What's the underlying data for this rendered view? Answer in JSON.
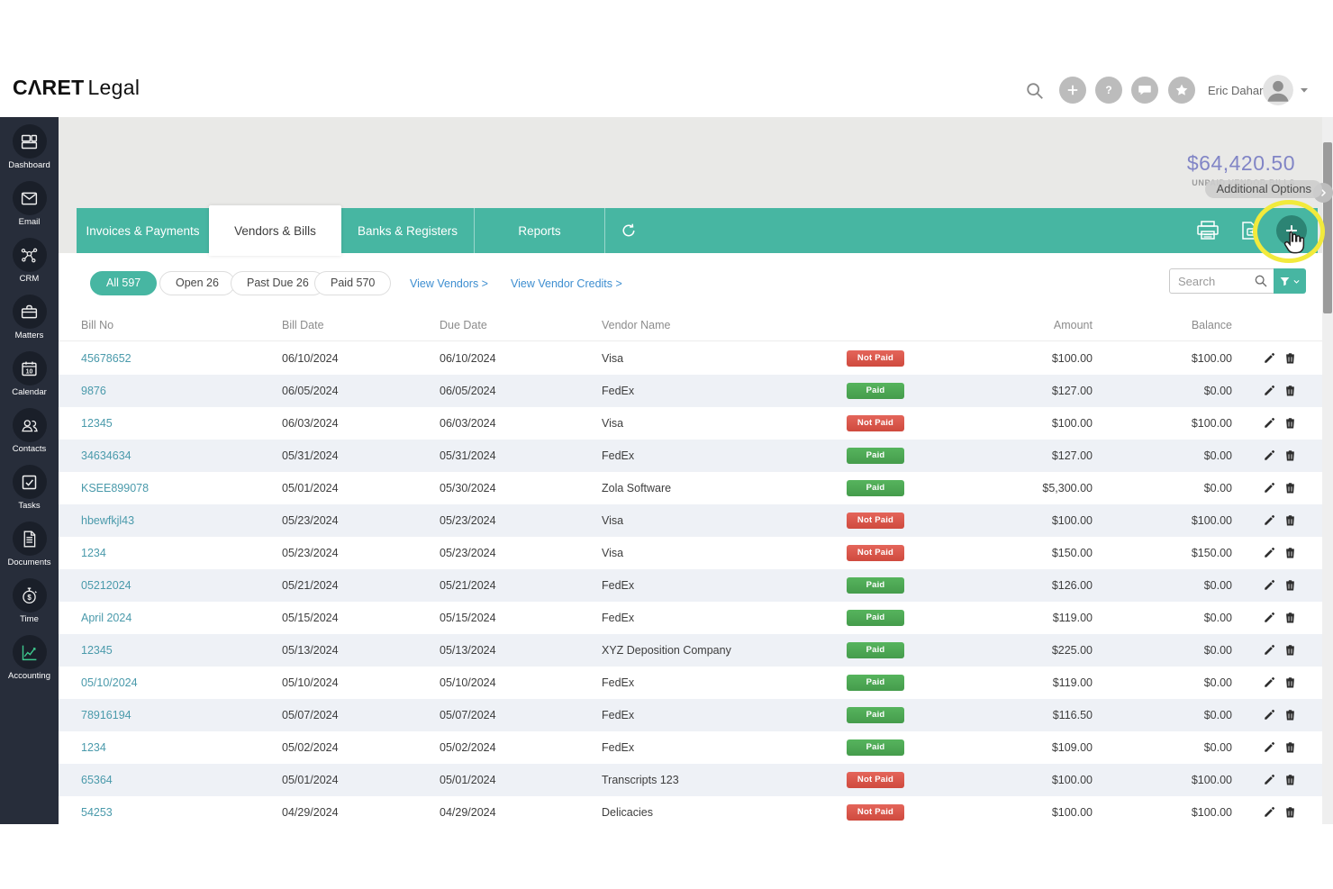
{
  "brand": {
    "bold": "CΛRET",
    "light": "Legal"
  },
  "header": {
    "user_name": "Eric Dahan"
  },
  "summary": {
    "amount": "$64,420.50",
    "label": "UNPAID VENDOR BILLS"
  },
  "tooltip": {
    "text": "Additional Options"
  },
  "tabs": [
    {
      "label": "Invoices & Payments",
      "active": false
    },
    {
      "label": "Vendors & Bills",
      "active": true
    },
    {
      "label": "Banks & Registers",
      "active": false
    },
    {
      "label": "Reports",
      "active": false
    }
  ],
  "filters": {
    "pills": [
      {
        "label": "All 597",
        "active": true
      },
      {
        "label": "Open 26",
        "active": false
      },
      {
        "label": "Past Due 26",
        "active": false
      },
      {
        "label": "Paid 570",
        "active": false
      }
    ],
    "links": [
      {
        "label": "View Vendors >"
      },
      {
        "label": "View Vendor Credits >"
      }
    ]
  },
  "search": {
    "placeholder": "Search"
  },
  "table": {
    "headers": {
      "bill_no": "Bill No",
      "bill_date": "Bill Date",
      "due_date": "Due Date",
      "vendor": "Vendor Name",
      "amount": "Amount",
      "balance": "Balance"
    },
    "rows": [
      {
        "bill_no": "45678652",
        "bill_date": "06/10/2024",
        "due_date": "06/10/2024",
        "vendor": "Visa",
        "status": "Not Paid",
        "amount": "$100.00",
        "balance": "$100.00"
      },
      {
        "bill_no": "9876",
        "bill_date": "06/05/2024",
        "due_date": "06/05/2024",
        "vendor": "FedEx",
        "status": "Paid",
        "amount": "$127.00",
        "balance": "$0.00"
      },
      {
        "bill_no": "12345",
        "bill_date": "06/03/2024",
        "due_date": "06/03/2024",
        "vendor": "Visa",
        "status": "Not Paid",
        "amount": "$100.00",
        "balance": "$100.00"
      },
      {
        "bill_no": "34634634",
        "bill_date": "05/31/2024",
        "due_date": "05/31/2024",
        "vendor": "FedEx",
        "status": "Paid",
        "amount": "$127.00",
        "balance": "$0.00"
      },
      {
        "bill_no": "KSEE899078",
        "bill_date": "05/01/2024",
        "due_date": "05/30/2024",
        "vendor": "Zola Software",
        "status": "Paid",
        "amount": "$5,300.00",
        "balance": "$0.00"
      },
      {
        "bill_no": "hbewfkjl43",
        "bill_date": "05/23/2024",
        "due_date": "05/23/2024",
        "vendor": "Visa",
        "status": "Not Paid",
        "amount": "$100.00",
        "balance": "$100.00"
      },
      {
        "bill_no": "1234",
        "bill_date": "05/23/2024",
        "due_date": "05/23/2024",
        "vendor": "Visa",
        "status": "Not Paid",
        "amount": "$150.00",
        "balance": "$150.00"
      },
      {
        "bill_no": "05212024",
        "bill_date": "05/21/2024",
        "due_date": "05/21/2024",
        "vendor": "FedEx",
        "status": "Paid",
        "amount": "$126.00",
        "balance": "$0.00"
      },
      {
        "bill_no": "April 2024",
        "bill_date": "05/15/2024",
        "due_date": "05/15/2024",
        "vendor": "FedEx",
        "status": "Paid",
        "amount": "$119.00",
        "balance": "$0.00"
      },
      {
        "bill_no": "12345",
        "bill_date": "05/13/2024",
        "due_date": "05/13/2024",
        "vendor": "XYZ Deposition Company",
        "status": "Paid",
        "amount": "$225.00",
        "balance": "$0.00"
      },
      {
        "bill_no": "05/10/2024",
        "bill_date": "05/10/2024",
        "due_date": "05/10/2024",
        "vendor": "FedEx",
        "status": "Paid",
        "amount": "$119.00",
        "balance": "$0.00"
      },
      {
        "bill_no": "78916194",
        "bill_date": "05/07/2024",
        "due_date": "05/07/2024",
        "vendor": "FedEx",
        "status": "Paid",
        "amount": "$116.50",
        "balance": "$0.00"
      },
      {
        "bill_no": "1234",
        "bill_date": "05/02/2024",
        "due_date": "05/02/2024",
        "vendor": "FedEx",
        "status": "Paid",
        "amount": "$109.00",
        "balance": "$0.00"
      },
      {
        "bill_no": "65364",
        "bill_date": "05/01/2024",
        "due_date": "05/01/2024",
        "vendor": "Transcripts 123",
        "status": "Not Paid",
        "amount": "$100.00",
        "balance": "$100.00"
      },
      {
        "bill_no": "54253",
        "bill_date": "04/29/2024",
        "due_date": "04/29/2024",
        "vendor": "Delicacies",
        "status": "Not Paid",
        "amount": "$100.00",
        "balance": "$100.00"
      }
    ]
  },
  "sidebar": {
    "items": [
      {
        "label": "Dashboard",
        "icon": "dashboard-icon",
        "active": false
      },
      {
        "label": "Email",
        "icon": "email-icon",
        "active": false
      },
      {
        "label": "CRM",
        "icon": "crm-icon",
        "active": false
      },
      {
        "label": "Matters",
        "icon": "matters-icon",
        "active": false
      },
      {
        "label": "Calendar",
        "icon": "calendar-icon",
        "active": false
      },
      {
        "label": "Contacts",
        "icon": "contacts-icon",
        "active": false
      },
      {
        "label": "Tasks",
        "icon": "tasks-icon",
        "active": false
      },
      {
        "label": "Documents",
        "icon": "documents-icon",
        "active": false
      },
      {
        "label": "Time",
        "icon": "time-icon",
        "active": false
      },
      {
        "label": "Accounting",
        "icon": "accounting-icon",
        "active": true
      }
    ]
  },
  "colors": {
    "accent_teal": "#47b6a2",
    "accent_teal_dark": "#2c8474",
    "paid_green": "#4aad52",
    "not_paid_red": "#dd5347",
    "unpaid_amount_purple": "#8185c6",
    "link_blue": "#3d8ed0",
    "bill_link_teal": "#4a9aab",
    "highlight_yellow": "#f2ea3c",
    "sidebar_bg": "#272d3a"
  }
}
